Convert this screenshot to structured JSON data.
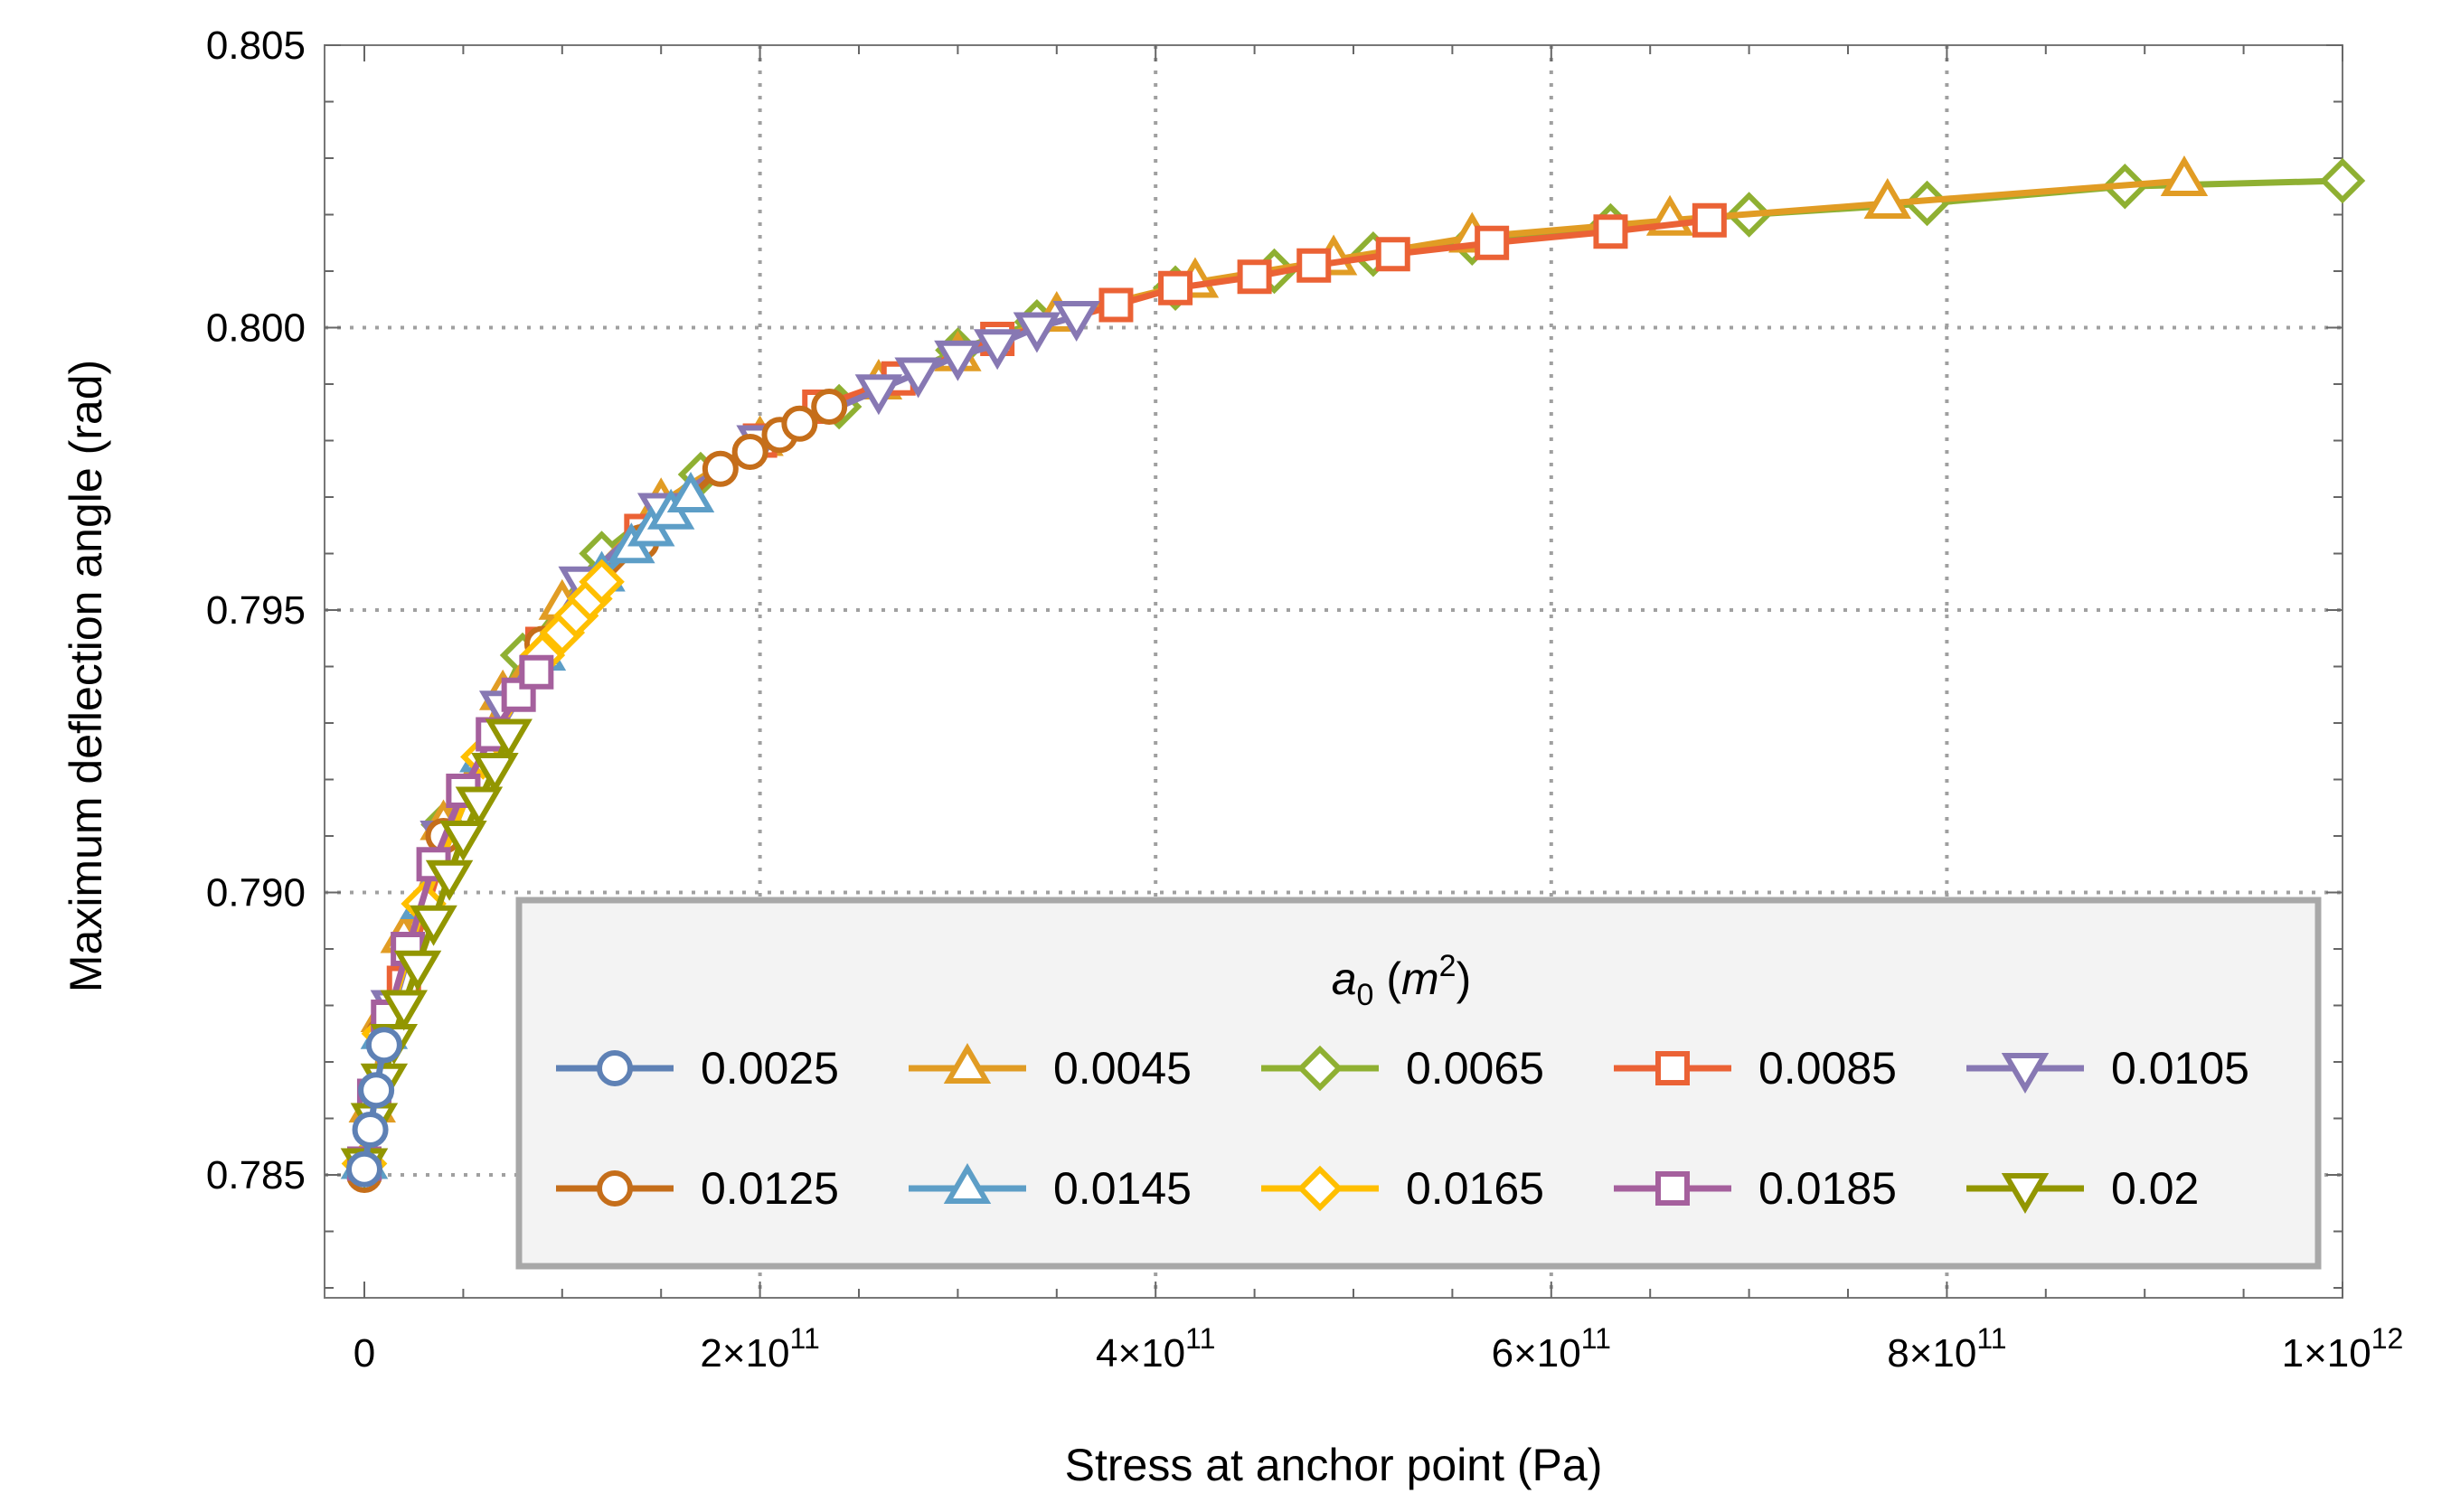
{
  "chart_data": {
    "type": "line",
    "xlabel": "Stress at anchor point (Pa)",
    "ylabel": "Maximum deflection angle (rad)",
    "xlim": [
      0,
      1000000000000
    ],
    "ylim": [
      0.783,
      0.805
    ],
    "x_ticks": [
      {
        "value": 0,
        "mantissa": "0",
        "exp": ""
      },
      {
        "value": 200000000000,
        "mantissa": "2×10",
        "exp": "11"
      },
      {
        "value": 400000000000,
        "mantissa": "4×10",
        "exp": "11"
      },
      {
        "value": 600000000000,
        "mantissa": "6×10",
        "exp": "11"
      },
      {
        "value": 800000000000,
        "mantissa": "8×10",
        "exp": "11"
      },
      {
        "value": 1000000000000,
        "mantissa": "1×10",
        "exp": "12"
      }
    ],
    "y_ticks": [
      {
        "value": 0.785,
        "label": "0.785"
      },
      {
        "value": 0.79,
        "label": "0.790"
      },
      {
        "value": 0.795,
        "label": "0.795"
      },
      {
        "value": 0.8,
        "label": "0.800"
      },
      {
        "value": 0.805,
        "label": "0.805"
      }
    ],
    "grid": true,
    "legend": {
      "title_base": "a",
      "title_sub": "0",
      "title_unit_open": " (",
      "title_unit_base": "m",
      "title_unit_sup": "2",
      "title_unit_close": ")",
      "placement": "bottom-right"
    },
    "series": [
      {
        "name": "0.0025",
        "color": "#5E81B5",
        "marker": "circle",
        "points": [
          [
            0,
            0.7851
          ],
          [
            3000000000.0,
            0.7858
          ],
          [
            6000000000.0,
            0.7865
          ],
          [
            10000000000.0,
            0.7873
          ]
        ]
      },
      {
        "name": "0.0045",
        "color": "#E19C24",
        "marker": "triangle-up",
        "points": [
          [
            0,
            0.7852
          ],
          [
            4000000000.0,
            0.7862
          ],
          [
            10000000000.0,
            0.7878
          ],
          [
            20000000000.0,
            0.7892
          ],
          [
            40000000000.0,
            0.7912
          ],
          [
            70000000000.0,
            0.7935
          ],
          [
            100000000000.0,
            0.7951
          ],
          [
            150000000000.0,
            0.7969
          ],
          [
            200000000000.0,
            0.798
          ],
          [
            260000000000.0,
            0.799
          ],
          [
            300000000000.0,
            0.7995
          ],
          [
            350000000000.0,
            0.8002
          ],
          [
            420000000000.0,
            0.8008
          ],
          [
            490000000000.0,
            0.8012
          ],
          [
            560000000000.0,
            0.8016
          ],
          [
            660000000000.0,
            0.8019
          ],
          [
            770000000000.0,
            0.8022
          ],
          [
            920000000000.0,
            0.8026
          ]
        ]
      },
      {
        "name": "0.0065",
        "color": "#8FB032",
        "marker": "diamond",
        "points": [
          [
            0,
            0.7852
          ],
          [
            15000000000.0,
            0.788
          ],
          [
            40000000000.0,
            0.7912
          ],
          [
            80000000000.0,
            0.7942
          ],
          [
            120000000000.0,
            0.796
          ],
          [
            170000000000.0,
            0.7974
          ],
          [
            240000000000.0,
            0.7986
          ],
          [
            300000000000.0,
            0.7996
          ],
          [
            340000000000.0,
            0.8001
          ],
          [
            410000000000.0,
            0.8007
          ],
          [
            460000000000.0,
            0.801
          ],
          [
            510000000000.0,
            0.8013
          ],
          [
            560000000000.0,
            0.8015
          ],
          [
            630000000000.0,
            0.8018
          ],
          [
            700000000000.0,
            0.802
          ],
          [
            790000000000.0,
            0.8022
          ],
          [
            890000000000.0,
            0.8025
          ],
          [
            1000000000000.0,
            0.8026
          ]
        ]
      },
      {
        "name": "0.0085",
        "color": "#EB6235",
        "marker": "square",
        "points": [
          [
            0,
            0.7852
          ],
          [
            20000000000.0,
            0.7884
          ],
          [
            50000000000.0,
            0.7918
          ],
          [
            90000000000.0,
            0.7944
          ],
          [
            140000000000.0,
            0.7964
          ],
          [
            200000000000.0,
            0.798
          ],
          [
            230000000000.0,
            0.7986
          ],
          [
            270000000000.0,
            0.7991
          ],
          [
            320000000000.0,
            0.7998
          ],
          [
            380000000000.0,
            0.8004
          ],
          [
            410000000000.0,
            0.8007
          ],
          [
            450000000000.0,
            0.8009
          ],
          [
            480000000000.0,
            0.8011
          ],
          [
            520000000000.0,
            0.8013
          ],
          [
            570000000000.0,
            0.8015
          ],
          [
            630000000000.0,
            0.8017
          ],
          [
            680000000000.0,
            0.8019
          ]
        ]
      },
      {
        "name": "0.0105",
        "color": "#8778B3",
        "marker": "triangle-down",
        "points": [
          [
            0,
            0.7852
          ],
          [
            15000000000.0,
            0.788
          ],
          [
            40000000000.0,
            0.791
          ],
          [
            70000000000.0,
            0.7933
          ],
          [
            110000000000.0,
            0.7955
          ],
          [
            150000000000.0,
            0.7968
          ],
          [
            200000000000.0,
            0.798
          ],
          [
            260000000000.0,
            0.7989
          ],
          [
            280000000000.0,
            0.7992
          ],
          [
            300000000000.0,
            0.7995
          ],
          [
            320000000000.0,
            0.7997
          ],
          [
            340000000000.0,
            0.8
          ],
          [
            360000000000.0,
            0.8002
          ]
        ]
      },
      {
        "name": "0.0125",
        "color": "#C56E1A",
        "marker": "circle",
        "points": [
          [
            0,
            0.785
          ],
          [
            10000000000.0,
            0.7875
          ],
          [
            40000000000.0,
            0.791
          ],
          [
            90000000000.0,
            0.7944
          ],
          [
            140000000000.0,
            0.7962
          ],
          [
            180000000000.0,
            0.7975
          ],
          [
            195000000000.0,
            0.7978
          ],
          [
            210000000000.0,
            0.7981
          ],
          [
            220000000000.0,
            0.7983
          ],
          [
            235000000000.0,
            0.7986
          ]
        ]
      },
      {
        "name": "0.0145",
        "color": "#5D9EC7",
        "marker": "triangle-up",
        "points": [
          [
            0,
            0.7852
          ],
          [
            10000000000.0,
            0.7875
          ],
          [
            30000000000.0,
            0.7898
          ],
          [
            60000000000.0,
            0.7924
          ],
          [
            90000000000.0,
            0.7942
          ],
          [
            120000000000.0,
            0.7956
          ],
          [
            135000000000.0,
            0.7961
          ],
          [
            145000000000.0,
            0.7964
          ],
          [
            155000000000.0,
            0.7967
          ],
          [
            165000000000.0,
            0.797
          ]
        ]
      },
      {
        "name": "0.0165",
        "color": "#FFBF00",
        "marker": "diamond",
        "points": [
          [
            0,
            0.7852
          ],
          [
            10000000000.0,
            0.7875
          ],
          [
            30000000000.0,
            0.7898
          ],
          [
            60000000000.0,
            0.7924
          ],
          [
            90000000000.0,
            0.7942
          ],
          [
            100000000000.0,
            0.7946
          ],
          [
            107000000000.0,
            0.7949
          ],
          [
            114000000000.0,
            0.7952
          ],
          [
            120000000000.0,
            0.7955
          ]
        ]
      },
      {
        "name": "0.0185",
        "color": "#A5609D",
        "marker": "square",
        "points": [
          [
            0,
            0.7852
          ],
          [
            5000000000.0,
            0.7864
          ],
          [
            12000000000.0,
            0.7878
          ],
          [
            22000000000.0,
            0.789
          ],
          [
            35000000000.0,
            0.7905
          ],
          [
            50000000000.0,
            0.7918
          ],
          [
            65000000000.0,
            0.7928
          ],
          [
            78000000000.0,
            0.7935
          ],
          [
            87000000000.0,
            0.7939
          ]
        ]
      },
      {
        "name": "0.02",
        "color": "#929600",
        "marker": "triangle-down",
        "points": [
          [
            0,
            0.7852
          ],
          [
            5000000000.0,
            0.786
          ],
          [
            10000000000.0,
            0.7867
          ],
          [
            15000000000.0,
            0.7874
          ],
          [
            20000000000.0,
            0.788
          ],
          [
            27000000000.0,
            0.7887
          ],
          [
            35000000000.0,
            0.7895
          ],
          [
            43000000000.0,
            0.7903
          ],
          [
            50000000000.0,
            0.791
          ],
          [
            58000000000.0,
            0.7916
          ],
          [
            66000000000.0,
            0.7922
          ],
          [
            73000000000.0,
            0.7928
          ]
        ]
      }
    ]
  }
}
